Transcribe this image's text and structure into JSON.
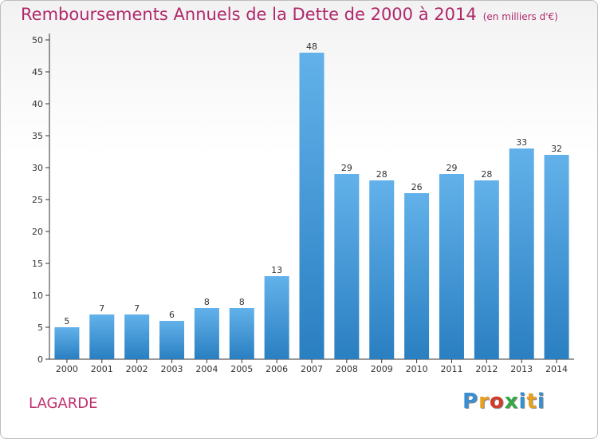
{
  "title": "Remboursements Annuels de la Dette de 2000 à 2014",
  "subtitle": "(en milliers d'€)",
  "location": "LAGARDE",
  "brand": {
    "text": "Proxiti",
    "letter_colors": [
      "#3a8fd0",
      "#e8a020",
      "#d23a2a",
      "#35a845",
      "#3a8fd0",
      "#e8a020",
      "#3a8fd0"
    ]
  },
  "colors": {
    "bar_light": "#62b1ea",
    "bar_dark": "#2a7fc1",
    "axis": "#000000",
    "title": "#b0286c"
  },
  "chart_data": {
    "type": "bar",
    "title": "Remboursements Annuels de la Dette de 2000 à 2014",
    "subtitle": "(en milliers d'€)",
    "categories": [
      "2000",
      "2001",
      "2002",
      "2003",
      "2004",
      "2005",
      "2006",
      "2007",
      "2008",
      "2009",
      "2010",
      "2011",
      "2012",
      "2013",
      "2014"
    ],
    "values": [
      5,
      7,
      7,
      6,
      8,
      8,
      13,
      48,
      29,
      28,
      26,
      29,
      28,
      33,
      32
    ],
    "ylim": [
      0,
      50
    ],
    "yticks": [
      0,
      5,
      10,
      15,
      20,
      25,
      30,
      35,
      40,
      45,
      50
    ],
    "grid": false,
    "data_labels": true
  }
}
